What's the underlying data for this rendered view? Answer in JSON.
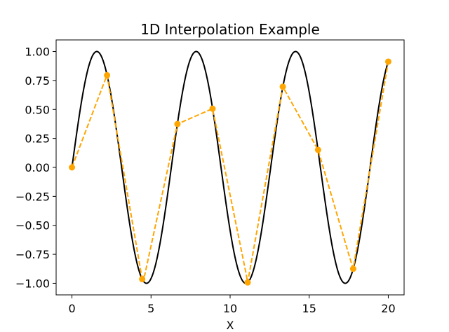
{
  "chart_data": {
    "type": "line",
    "title": "1D Interpolation Example",
    "xlabel": "X",
    "ylabel": "",
    "xlim": [
      -1,
      21
    ],
    "ylim": [
      -1.1,
      1.1
    ],
    "x_ticks": [
      0,
      5,
      10,
      15,
      20
    ],
    "y_ticks": [
      1.0,
      0.75,
      0.5,
      0.25,
      0.0,
      -0.25,
      -0.5,
      -0.75,
      -1.0
    ],
    "x_tick_labels": [
      "0",
      "5",
      "10",
      "15",
      "20"
    ],
    "y_tick_labels": [
      "1.00",
      "0.75",
      "0.50",
      "0.25",
      "0.00",
      "−0.25",
      "−0.50",
      "−0.75",
      "−1.00"
    ],
    "grid": false,
    "series": [
      {
        "kind": "line",
        "function": "sin(x)",
        "x_range": [
          0,
          20
        ],
        "color": "#000000",
        "style": "solid"
      },
      {
        "kind": "points",
        "marker": "circle",
        "color": "#ffa500",
        "x": [
          0,
          2.22,
          4.44,
          6.67,
          8.89,
          11.11,
          13.33,
          15.56,
          17.78,
          20.0
        ],
        "y": [
          0,
          0.7952,
          -0.964,
          0.3741,
          0.5068,
          -0.9931,
          0.6963,
          0.1514,
          -0.8751,
          0.9129
        ]
      },
      {
        "kind": "line",
        "interpolated": true,
        "color": "#ffa500",
        "style": "dashed",
        "x": [
          0,
          2.0,
          2.22,
          4.44,
          4.6,
          6.67,
          8.89,
          11.0,
          11.11,
          13.33,
          15.56,
          17.5,
          17.78,
          20.0
        ],
        "y": [
          0,
          0.72,
          0.7952,
          -0.964,
          -0.93,
          0.3741,
          0.5068,
          -0.91,
          -0.9931,
          0.6963,
          0.1514,
          -0.75,
          -0.8751,
          0.9129
        ]
      }
    ]
  }
}
